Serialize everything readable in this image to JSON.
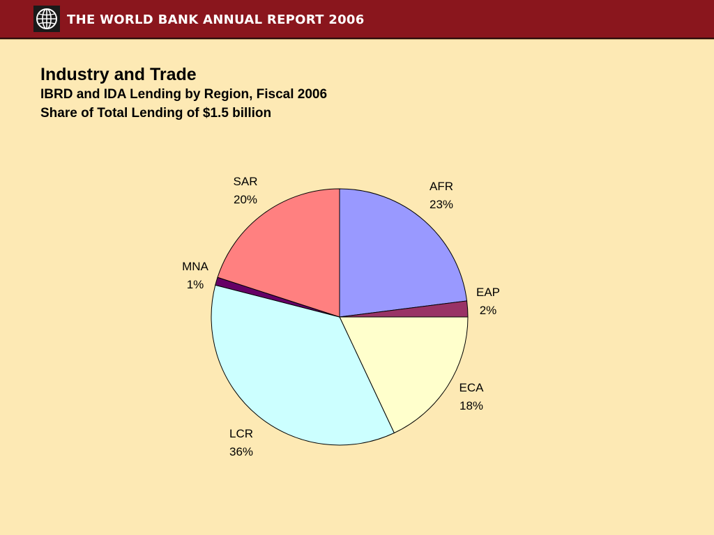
{
  "header": {
    "title": "THE WORLD BANK ANNUAL REPORT 2006",
    "logo_icon": "globe-icon",
    "background_color": "#8a161d"
  },
  "page": {
    "background_color": "#fde9b4"
  },
  "chart_data": {
    "type": "pie",
    "title": "Industry and Trade",
    "subtitle": "IBRD and IDA Lending by Region, Fiscal 2006",
    "subtitle2": "Share of Total Lending of $1.5 billion",
    "start_angle_deg": 0,
    "direction": "clockwise",
    "slices": [
      {
        "label": "AFR",
        "value": 23,
        "display": "23%",
        "color": "#9999ff"
      },
      {
        "label": "EAP",
        "value": 2,
        "display": "2%",
        "color": "#993366"
      },
      {
        "label": "ECA",
        "value": 18,
        "display": "18%",
        "color": "#ffffcc"
      },
      {
        "label": "LCR",
        "value": 36,
        "display": "36%",
        "color": "#ccffff"
      },
      {
        "label": "MNA",
        "value": 1,
        "display": "1%",
        "color": "#660066"
      },
      {
        "label": "SAR",
        "value": 20,
        "display": "20%",
        "color": "#ff8080"
      }
    ]
  }
}
